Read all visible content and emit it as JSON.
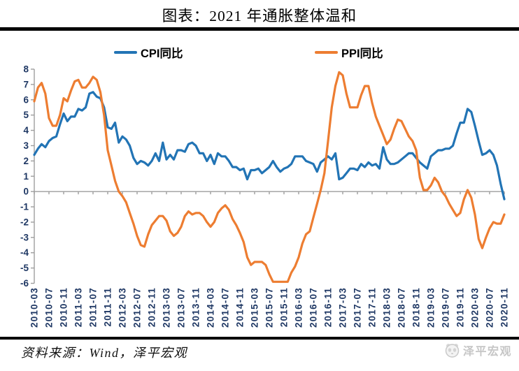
{
  "title": "图表：2021 年通胀整体温和",
  "legend": [
    {
      "label": "CPI同比",
      "color": "#2274b5"
    },
    {
      "label": "PPI同比",
      "color": "#ed7d31"
    }
  ],
  "source": "资料来源：Wind，泽平宏观",
  "watermark": {
    "brand": "泽平宏观",
    "icon": "panda-logo-icon"
  },
  "chart_data": {
    "type": "line",
    "title": "图表：2021 年通胀整体温和",
    "x_start": "2010-03",
    "x_freq": "monthly",
    "x_tick_labels": [
      "2010-03",
      "2010-07",
      "2010-11",
      "2011-03",
      "2011-07",
      "2011-11",
      "2012-03",
      "2012-07",
      "2012-11",
      "2013-03",
      "2013-07",
      "2013-11",
      "2014-03",
      "2014-07",
      "2014-11",
      "2015-03",
      "2015-07",
      "2015-11",
      "2016-03",
      "2016-07",
      "2016-11",
      "2017-03",
      "2017-07",
      "2017-11",
      "2018-03",
      "2018-07",
      "2018-11",
      "2019-03",
      "2019-07",
      "2019-11",
      "2020-03",
      "2020-07",
      "2020-11"
    ],
    "x_tick_every_n_points": 4,
    "series": [
      {
        "name": "CPI同比",
        "color": "#2274b5",
        "values": [
          2.4,
          2.8,
          3.1,
          2.9,
          3.3,
          3.5,
          3.6,
          4.4,
          5.1,
          4.6,
          4.9,
          4.9,
          5.4,
          5.3,
          5.5,
          6.4,
          6.5,
          6.2,
          6.1,
          5.5,
          4.2,
          4.1,
          4.5,
          3.2,
          3.6,
          3.4,
          3.0,
          2.2,
          1.8,
          2.0,
          1.9,
          1.7,
          2.0,
          2.5,
          2.0,
          3.2,
          2.1,
          2.4,
          2.1,
          2.7,
          2.7,
          2.6,
          3.1,
          3.2,
          3.0,
          2.5,
          2.5,
          2.0,
          2.4,
          1.8,
          2.5,
          2.3,
          2.3,
          2.0,
          1.6,
          1.6,
          1.4,
          1.5,
          0.8,
          1.4,
          1.4,
          1.5,
          1.2,
          1.4,
          1.6,
          2.0,
          1.6,
          1.3,
          1.5,
          1.6,
          1.8,
          2.3,
          2.3,
          2.3,
          2.0,
          1.9,
          1.8,
          1.3,
          1.9,
          2.1,
          2.3,
          2.1,
          2.5,
          0.8,
          0.9,
          1.2,
          1.5,
          1.5,
          1.4,
          1.8,
          1.6,
          1.9,
          1.7,
          1.8,
          1.5,
          2.9,
          2.1,
          1.8,
          1.8,
          1.9,
          2.1,
          2.3,
          2.5,
          2.5,
          2.2,
          1.9,
          1.7,
          1.5,
          2.3,
          2.5,
          2.7,
          2.7,
          2.8,
          2.8,
          3.0,
          3.8,
          4.5,
          4.5,
          5.4,
          5.2,
          4.3,
          3.3,
          2.4,
          2.5,
          2.7,
          2.4,
          1.7,
          0.5,
          -0.5
        ]
      },
      {
        "name": "PPI同比",
        "color": "#ed7d31",
        "values": [
          5.9,
          6.8,
          7.1,
          6.4,
          4.8,
          4.3,
          4.3,
          5.0,
          6.1,
          5.9,
          6.6,
          7.2,
          7.3,
          6.8,
          6.8,
          7.1,
          7.5,
          7.3,
          6.5,
          5.0,
          2.7,
          1.7,
          0.7,
          0.0,
          -0.3,
          -0.7,
          -1.4,
          -2.1,
          -2.9,
          -3.5,
          -3.6,
          -2.8,
          -2.2,
          -1.9,
          -1.6,
          -1.6,
          -1.9,
          -2.6,
          -2.9,
          -2.7,
          -2.3,
          -1.6,
          -1.3,
          -1.5,
          -1.4,
          -1.4,
          -1.6,
          -2.0,
          -2.3,
          -2.0,
          -1.4,
          -1.1,
          -0.9,
          -1.2,
          -1.8,
          -2.2,
          -2.7,
          -3.3,
          -4.3,
          -4.8,
          -4.6,
          -4.6,
          -4.6,
          -4.8,
          -5.4,
          -5.9,
          -5.9,
          -5.9,
          -5.9,
          -5.9,
          -5.3,
          -4.9,
          -4.3,
          -3.4,
          -2.8,
          -2.6,
          -1.7,
          -0.8,
          0.1,
          1.2,
          3.3,
          5.5,
          6.9,
          7.8,
          7.6,
          6.4,
          5.5,
          5.5,
          5.5,
          6.3,
          6.9,
          6.9,
          5.8,
          4.9,
          4.3,
          3.7,
          3.1,
          3.4,
          4.1,
          4.7,
          4.6,
          4.1,
          3.6,
          3.3,
          2.7,
          0.9,
          0.1,
          0.1,
          0.4,
          0.9,
          0.6,
          0.0,
          -0.3,
          -0.8,
          -1.2,
          -1.6,
          -1.4,
          -0.5,
          0.1,
          -0.4,
          -1.5,
          -3.1,
          -3.7,
          -3.0,
          -2.4,
          -2.0,
          -2.1,
          -2.1,
          -1.5
        ]
      }
    ],
    "xlabel": "",
    "ylabel": "",
    "ylim": [
      -6,
      8
    ],
    "y_ticks": [
      8,
      7,
      6,
      5,
      4,
      3,
      2,
      1,
      0,
      -1,
      -2,
      -3,
      -4,
      -5,
      -6
    ],
    "grid": "zero-line-only",
    "axis_color": "#9e9e9e",
    "tick_label_color": "#1f3864",
    "legend_position": "top"
  }
}
